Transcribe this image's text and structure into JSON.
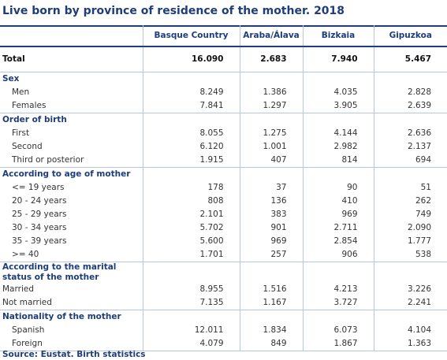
{
  "title": "Live born by province of residence of the mother. 2018",
  "columns": [
    "",
    "Basque Country",
    "Araba/Álava",
    "Bizkaia",
    "Gipuzkoa"
  ],
  "total": {
    "label": "Total",
    "values": [
      "16.090",
      "2.683",
      "7.940",
      "5.467"
    ]
  },
  "sections": [
    {
      "heading": "Sex",
      "rows": [
        {
          "label": "Men",
          "values": [
            "8.249",
            "1.386",
            "4.035",
            "2.828"
          ]
        },
        {
          "label": "Females",
          "values": [
            "7.841",
            "1.297",
            "3.905",
            "2.639"
          ]
        }
      ]
    },
    {
      "heading": "Order of birth",
      "rows": [
        {
          "label": "First",
          "values": [
            "8.055",
            "1.275",
            "4.144",
            "2.636"
          ]
        },
        {
          "label": "Second",
          "values": [
            "6.120",
            "1.001",
            "2.982",
            "2.137"
          ]
        },
        {
          "label": "Third or posterior",
          "values": [
            "1.915",
            "407",
            "814",
            "694"
          ]
        }
      ]
    },
    {
      "heading": "According to age of mother",
      "rows": [
        {
          "label": "<= 19 years",
          "values": [
            "178",
            "37",
            "90",
            "51"
          ]
        },
        {
          "label": "20 - 24 years",
          "values": [
            "808",
            "136",
            "410",
            "262"
          ]
        },
        {
          "label": "25 - 29 years",
          "values": [
            "2.101",
            "383",
            "969",
            "749"
          ]
        },
        {
          "label": "30 - 34 years",
          "values": [
            "5.702",
            "901",
            "2.711",
            "2.090"
          ]
        },
        {
          "label": "35 - 39 years",
          "values": [
            "5.600",
            "969",
            "2.854",
            "1.777"
          ]
        },
        {
          "label": ">= 40",
          "values": [
            "1.701",
            "257",
            "906",
            "538"
          ]
        }
      ]
    },
    {
      "heading": "According to the marital status of the mother",
      "rows": [
        {
          "label": "Married",
          "values": [
            "8.955",
            "1.516",
            "4.213",
            "3.226"
          ]
        },
        {
          "label": "Not married",
          "values": [
            "7.135",
            "1.167",
            "3.727",
            "2.241"
          ]
        }
      ]
    },
    {
      "heading": "Nationality of the mother",
      "rows": [
        {
          "label": "Spanish",
          "values": [
            "12.011",
            "1.834",
            "6.073",
            "4.104"
          ]
        },
        {
          "label": "Foreign",
          "values": [
            "4.079",
            "849",
            "1.867",
            "1.363"
          ]
        }
      ]
    }
  ],
  "source": "Source: Eustat. Birth statistics"
}
